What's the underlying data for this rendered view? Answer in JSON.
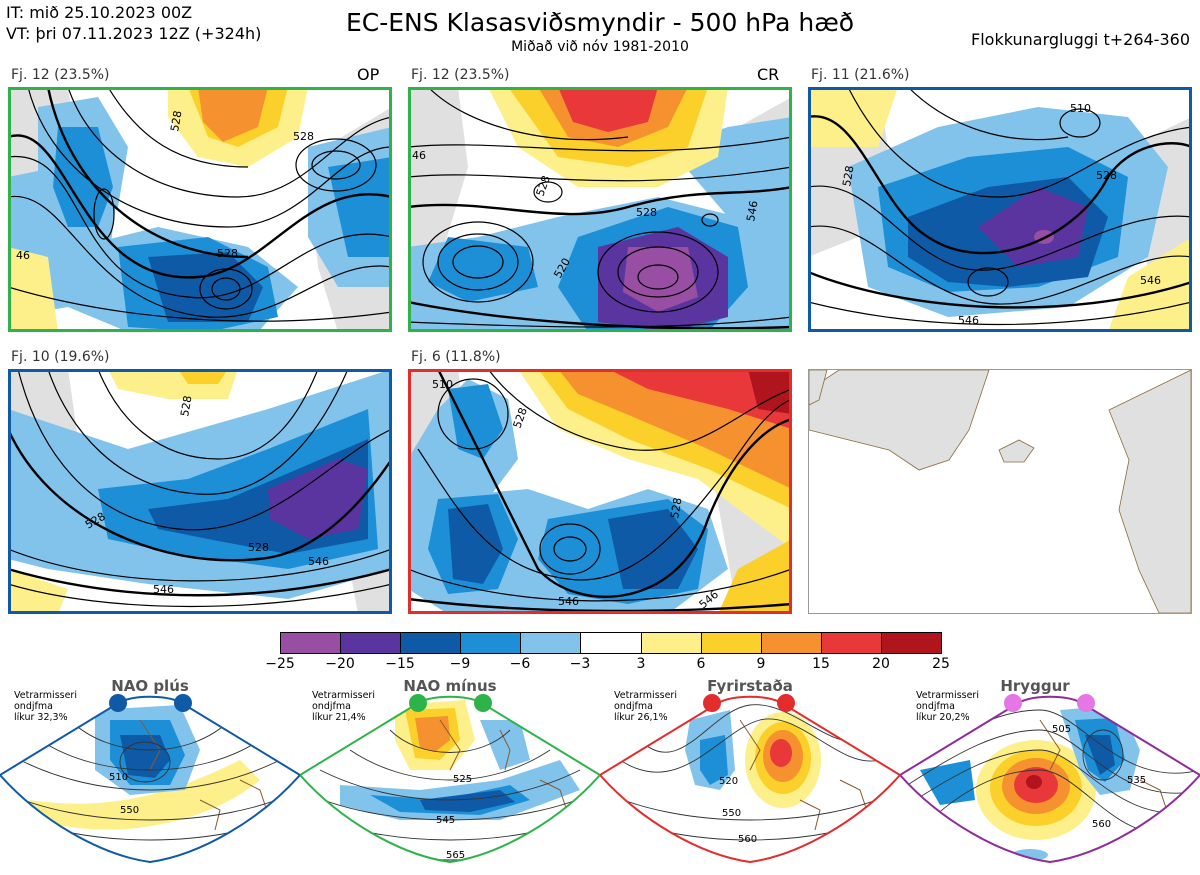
{
  "header": {
    "it_line": "IT: mið 25.10.2023 00Z",
    "vt_line": "VT: þri 07.11.2023 12Z  (+324h)",
    "title": "EC-ENS Klasasviðsmyndir - 500 hPa hæð",
    "subtitle": "Miðað við nóv 1981-2010",
    "window": "Flokkunargluggi t+264-360"
  },
  "panels": [
    {
      "label": "Fj. 12 (23.5%)",
      "tag": "OP",
      "frame_color": "#2eb34a",
      "contour_labels": [
        "528",
        "528",
        "528",
        "46"
      ]
    },
    {
      "label": "Fj. 12 (23.5%)",
      "tag": "CR",
      "frame_color": "#2eb34a",
      "contour_labels": [
        "528",
        "528",
        "520",
        "546",
        "46"
      ]
    },
    {
      "label": "Fj. 11 (21.6%)",
      "tag": "",
      "frame_color": "#0e5aa7",
      "contour_labels": [
        "510",
        "528",
        "546",
        "546",
        "528"
      ]
    },
    {
      "label": "Fj. 10 (19.6%)",
      "tag": "",
      "frame_color": "#0e5aa7",
      "contour_labels": [
        "528",
        "528",
        "528",
        "546",
        "546"
      ]
    },
    {
      "label": "Fj. 6 (11.8%)",
      "tag": "",
      "frame_color": "#e32c2c",
      "contour_labels": [
        "510",
        "528",
        "528",
        "546",
        "546"
      ]
    }
  ],
  "colorbar": {
    "ticks": [
      "−25",
      "−20",
      "−15",
      "−9",
      "−6",
      "−3",
      "3",
      "6",
      "9",
      "15",
      "20",
      "25"
    ],
    "colors": [
      "#984ea3",
      "#5a35a0",
      "#0e5aa7",
      "#1c8fd6",
      "#82c3ec",
      "#ffffff",
      "#fdf08a",
      "#fbd02a",
      "#f5922f",
      "#e8383a",
      "#b0141c"
    ]
  },
  "regimes": [
    {
      "name": "NAO plús",
      "note": [
        "Vetrarmisseri",
        "ondjfma",
        "líkur 32,3%"
      ],
      "color": "#0e5aa7",
      "contour_labels": [
        "510",
        "550"
      ]
    },
    {
      "name": "NAO mínus",
      "note": [
        "Vetrarmisseri",
        "ondjfma",
        "líkur 21,4%"
      ],
      "color": "#2eb34a",
      "contour_labels": [
        "525",
        "545",
        "565"
      ]
    },
    {
      "name": "Fyrirstaða",
      "note": [
        "Vetrarmisseri",
        "ondjfma",
        "líkur 26,1%"
      ],
      "color": "#e32c2c",
      "contour_labels": [
        "520",
        "550",
        "560"
      ]
    },
    {
      "name": "Hryggur",
      "note": [
        "Vetrarmisseri",
        "ondjfma",
        "líkur 20,2%"
      ],
      "color": "#8f2b9a",
      "contour_labels": [
        "505",
        "535",
        "560"
      ]
    }
  ]
}
